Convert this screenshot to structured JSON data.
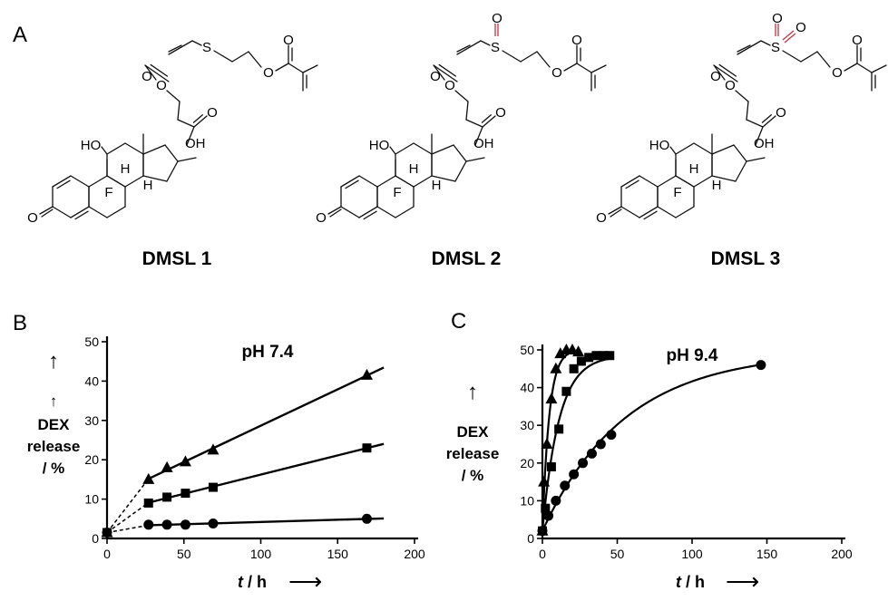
{
  "panels": {
    "a": {
      "label": "A"
    },
    "b": {
      "label": "B"
    },
    "c": {
      "label": "C"
    }
  },
  "molecules": [
    {
      "name": "DMSL 1",
      "linker": "S"
    },
    {
      "name": "DMSL 2",
      "linker": "S=O"
    },
    {
      "name": "DMSL 3",
      "linker": "O=S=O"
    }
  ],
  "atoms": {
    "S": "S",
    "O": "O",
    "OH": "OH",
    "HO": "HO",
    "H": "H",
    "F": "F"
  },
  "colors": {
    "heteroatom": "#c8333f",
    "line": "#000000"
  },
  "arrow_glyph": "⟶",
  "chart_data": [
    {
      "type": "scatter",
      "title": "pH 7.4",
      "xlabel_italic": "t",
      "xlabel_rest": " / h",
      "ylabel_lines": [
        "DEX",
        "release",
        "/ %"
      ],
      "xlim": [
        0,
        200
      ],
      "ylim": [
        0,
        50
      ],
      "xticks": [
        0,
        50,
        100,
        150,
        200
      ],
      "yticks": [
        0,
        10,
        20,
        30,
        40,
        50
      ],
      "series": [
        {
          "marker": "triangle",
          "x": [
            0,
            27,
            39,
            51,
            69,
            169
          ],
          "y": [
            1.5,
            15,
            18,
            19.5,
            22.5,
            41.5
          ],
          "fit": "linear",
          "fit_from": 27,
          "fit_to": 180,
          "dashed_to": 27
        },
        {
          "marker": "square",
          "x": [
            0,
            27,
            39,
            51,
            69,
            169
          ],
          "y": [
            1.5,
            9,
            10.5,
            11.5,
            13,
            23
          ],
          "fit": "linear",
          "fit_from": 27,
          "fit_to": 180,
          "dashed_to": 27
        },
        {
          "marker": "circle",
          "x": [
            0,
            27,
            39,
            51,
            69,
            169
          ],
          "y": [
            1.5,
            3.5,
            3.5,
            3.5,
            3.8,
            5
          ],
          "fit": "linear",
          "fit_from": 27,
          "fit_to": 180,
          "dashed_to": 27
        }
      ]
    },
    {
      "type": "scatter",
      "title": "pH 9.4",
      "xlabel_italic": "t",
      "xlabel_rest": " / h",
      "ylabel_lines": [
        "DEX",
        "release",
        "/ %"
      ],
      "xlim": [
        0,
        200
      ],
      "ylim": [
        0,
        50
      ],
      "xticks": [
        0,
        50,
        100,
        150,
        200
      ],
      "yticks": [
        0,
        10,
        20,
        30,
        40,
        50
      ],
      "series": [
        {
          "marker": "triangle",
          "x": [
            0,
            1,
            3,
            6,
            9,
            12,
            16,
            20,
            24
          ],
          "y": [
            2,
            15,
            25,
            37,
            45,
            49,
            50,
            50,
            49.5
          ],
          "fit": "exp",
          "plateau": 50,
          "k": 0.22
        },
        {
          "marker": "square",
          "x": [
            0,
            2,
            6,
            11,
            16,
            21,
            26,
            31,
            36,
            41,
            45
          ],
          "y": [
            2,
            8,
            19,
            29,
            39,
            45,
            47,
            48,
            48.5,
            48.5,
            48.5
          ],
          "fit": "exp",
          "plateau": 48.5,
          "k": 0.09
        },
        {
          "marker": "circle",
          "x": [
            0,
            4,
            9,
            15,
            21,
            27,
            33,
            39,
            46,
            146
          ],
          "y": [
            2,
            6,
            10,
            14,
            17,
            20,
            22.5,
            25,
            27.5,
            46
          ],
          "fit": "exp",
          "plateau": 49.5,
          "k": 0.018
        }
      ]
    }
  ]
}
